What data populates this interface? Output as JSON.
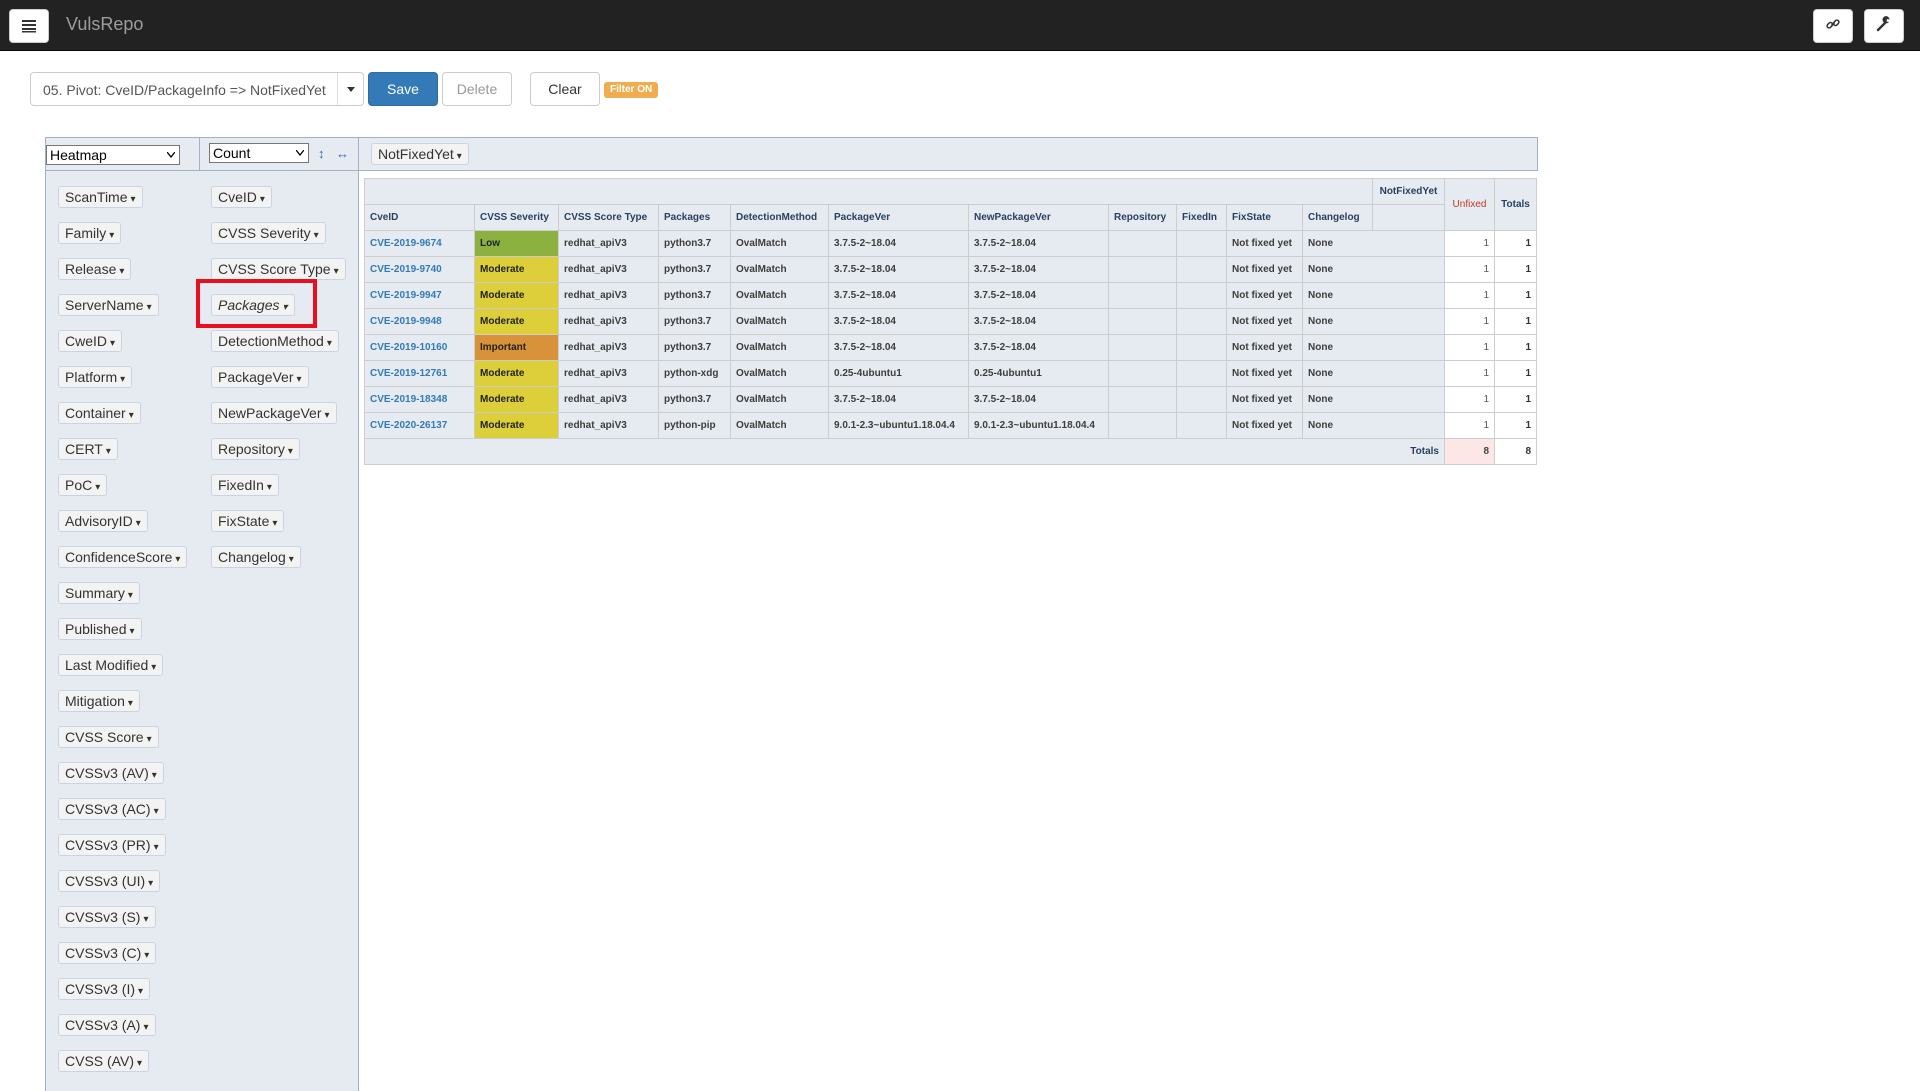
{
  "navbar": {
    "brand": "VulsRepo",
    "menu_icon": "hamburger-menu-icon",
    "link_icon": "link-icon",
    "settings_icon": "wrench-icon"
  },
  "toolbar": {
    "saved_view": "05. Pivot: CveID/PackageInfo => NotFixedYet",
    "save_label": "Save",
    "delete_label": "Delete",
    "clear_label": "Clear",
    "filter_badge": "Filter ON"
  },
  "pivot": {
    "renderer": "Heatmap",
    "aggregator": "Count",
    "sort_rows_icon": "↕",
    "sort_cols_icon": "↔",
    "column_attr": "NotFixedYet",
    "unused_attrs": [
      "ScanTime",
      "Family",
      "Release",
      "ServerName",
      "CweID",
      "Platform",
      "Container",
      "CERT",
      "PoC",
      "AdvisoryID",
      "ConfidenceScore",
      "Summary",
      "Published",
      "Last Modified",
      "Mitigation",
      "CVSS Score",
      "CVSSv3 (AV)",
      "CVSSv3 (AC)",
      "CVSSv3 (PR)",
      "CVSSv3 (UI)",
      "CVSSv3 (S)",
      "CVSSv3 (C)",
      "CVSSv3 (I)",
      "CVSSv3 (A)",
      "CVSS (AV)"
    ],
    "row_attrs": [
      "CveID",
      "CVSS Severity",
      "CVSS Score Type",
      "Packages",
      "DetectionMethod",
      "PackageVer",
      "NewPackageVer",
      "Repository",
      "FixedIn",
      "FixState",
      "Changelog"
    ],
    "highlighted_attr": "Packages",
    "caret": "▾"
  },
  "table": {
    "col_attr_header": "NotFixedYet",
    "col_value": "Unfixed",
    "totals_label": "Totals",
    "headers": [
      "CveID",
      "CVSS Severity",
      "CVSS Score Type",
      "Packages",
      "DetectionMethod",
      "PackageVer",
      "NewPackageVer",
      "Repository",
      "FixedIn",
      "FixState",
      "Changelog"
    ],
    "rows": [
      {
        "cve": "CVE-2019-9674",
        "severity": "Low",
        "sev_color": "#8cb141",
        "score_type": "redhat_apiV3",
        "pkg": "python3.7",
        "method": "OvalMatch",
        "ver": "3.7.5-2~18.04",
        "newver": "3.7.5-2~18.04",
        "repo": "",
        "fixedin": "",
        "state": "Not fixed yet",
        "changelog": "None",
        "count": "1",
        "total": "1"
      },
      {
        "cve": "CVE-2019-9740",
        "severity": "Moderate",
        "sev_color": "#dccf3a",
        "score_type": "redhat_apiV3",
        "pkg": "python3.7",
        "method": "OvalMatch",
        "ver": "3.7.5-2~18.04",
        "newver": "3.7.5-2~18.04",
        "repo": "",
        "fixedin": "",
        "state": "Not fixed yet",
        "changelog": "None",
        "count": "1",
        "total": "1"
      },
      {
        "cve": "CVE-2019-9947",
        "severity": "Moderate",
        "sev_color": "#dccf3a",
        "score_type": "redhat_apiV3",
        "pkg": "python3.7",
        "method": "OvalMatch",
        "ver": "3.7.5-2~18.04",
        "newver": "3.7.5-2~18.04",
        "repo": "",
        "fixedin": "",
        "state": "Not fixed yet",
        "changelog": "None",
        "count": "1",
        "total": "1"
      },
      {
        "cve": "CVE-2019-9948",
        "severity": "Moderate",
        "sev_color": "#dccf3a",
        "score_type": "redhat_apiV3",
        "pkg": "python3.7",
        "method": "OvalMatch",
        "ver": "3.7.5-2~18.04",
        "newver": "3.7.5-2~18.04",
        "repo": "",
        "fixedin": "",
        "state": "Not fixed yet",
        "changelog": "None",
        "count": "1",
        "total": "1"
      },
      {
        "cve": "CVE-2019-10160",
        "severity": "Important",
        "sev_color": "#d8923a",
        "score_type": "redhat_apiV3",
        "pkg": "python3.7",
        "method": "OvalMatch",
        "ver": "3.7.5-2~18.04",
        "newver": "3.7.5-2~18.04",
        "repo": "",
        "fixedin": "",
        "state": "Not fixed yet",
        "changelog": "None",
        "count": "1",
        "total": "1"
      },
      {
        "cve": "CVE-2019-12761",
        "severity": "Moderate",
        "sev_color": "#dccf3a",
        "score_type": "redhat_apiV3",
        "pkg": "python-xdg",
        "method": "OvalMatch",
        "ver": "0.25-4ubuntu1",
        "newver": "0.25-4ubuntu1",
        "repo": "",
        "fixedin": "",
        "state": "Not fixed yet",
        "changelog": "None",
        "count": "1",
        "total": "1"
      },
      {
        "cve": "CVE-2019-18348",
        "severity": "Moderate",
        "sev_color": "#dccf3a",
        "score_type": "redhat_apiV3",
        "pkg": "python3.7",
        "method": "OvalMatch",
        "ver": "3.7.5-2~18.04",
        "newver": "3.7.5-2~18.04",
        "repo": "",
        "fixedin": "",
        "state": "Not fixed yet",
        "changelog": "None",
        "count": "1",
        "total": "1"
      },
      {
        "cve": "CVE-2020-26137",
        "severity": "Moderate",
        "sev_color": "#dccf3a",
        "score_type": "redhat_apiV3",
        "pkg": "python-pip",
        "method": "OvalMatch",
        "ver": "9.0.1-2.3~ubuntu1.18.04.4",
        "newver": "9.0.1-2.3~ubuntu1.18.04.4",
        "repo": "",
        "fixedin": "",
        "state": "Not fixed yet",
        "changelog": "None",
        "count": "1",
        "total": "1"
      }
    ],
    "grand_count": "8",
    "grand_total": "8"
  }
}
